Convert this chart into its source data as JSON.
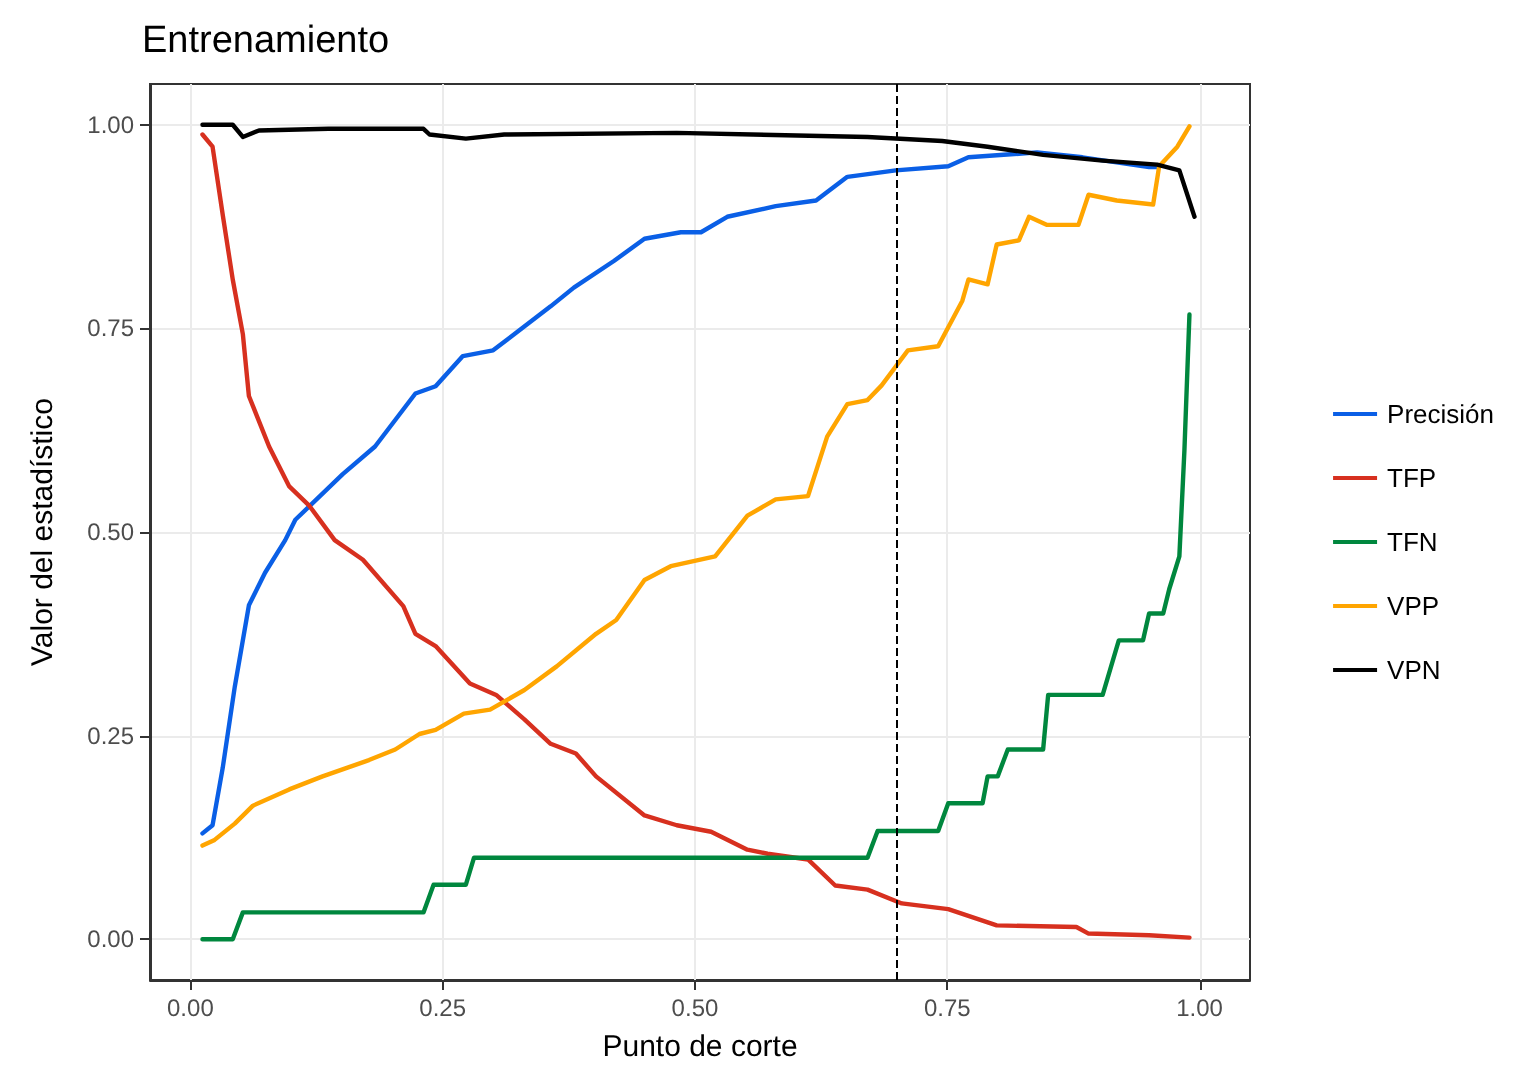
{
  "chart_data": {
    "type": "line",
    "title": "Entrenamiento",
    "xlabel": "Punto de corte",
    "ylabel": "Valor del estadístico",
    "xlim": [
      -0.04,
      1.05
    ],
    "ylim": [
      -0.05,
      1.05
    ],
    "xticks": [
      {
        "value": 0,
        "label": "0.00"
      },
      {
        "value": 0.25,
        "label": "0.25"
      },
      {
        "value": 0.5,
        "label": "0.50"
      },
      {
        "value": 0.75,
        "label": "0.75"
      },
      {
        "value": 1,
        "label": "1.00"
      }
    ],
    "yticks": [
      {
        "value": 0,
        "label": "0.00"
      },
      {
        "value": 0.25,
        "label": "0.25"
      },
      {
        "value": 0.5,
        "label": "0.50"
      },
      {
        "value": 0.75,
        "label": "0.75"
      },
      {
        "value": 1,
        "label": "1.00"
      }
    ],
    "grid": true,
    "legend": "right",
    "marker": "none",
    "line_style": "solid",
    "ref_lines": [
      {
        "axis": "x",
        "value": 0.7,
        "color": "#000000",
        "line_style": "dashed"
      }
    ],
    "series": [
      {
        "name": "Precisión",
        "color": "#0a5fe6",
        "x": [
          0.012,
          0.022,
          0.032,
          0.044,
          0.058,
          0.074,
          0.094,
          0.104,
          0.151,
          0.183,
          0.223,
          0.243,
          0.27,
          0.3,
          0.357,
          0.38,
          0.42,
          0.45,
          0.486,
          0.506,
          0.532,
          0.58,
          0.62,
          0.651,
          0.699,
          0.751,
          0.771,
          0.839,
          0.884,
          0.95,
          0.96
        ],
        "values": [
          0.13,
          0.14,
          0.21,
          0.31,
          0.41,
          0.45,
          0.49,
          0.515,
          0.571,
          0.605,
          0.67,
          0.679,
          0.716,
          0.723,
          0.777,
          0.8,
          0.833,
          0.86,
          0.868,
          0.868,
          0.887,
          0.9,
          0.907,
          0.936,
          0.944,
          0.949,
          0.96,
          0.966,
          0.96,
          0.948,
          0.948
        ]
      },
      {
        "name": "TFP",
        "color": "#d7301f",
        "x": [
          0.012,
          0.022,
          0.032,
          0.042,
          0.052,
          0.058,
          0.078,
          0.098,
          0.118,
          0.143,
          0.171,
          0.211,
          0.223,
          0.243,
          0.277,
          0.303,
          0.331,
          0.357,
          0.382,
          0.402,
          0.45,
          0.482,
          0.516,
          0.552,
          0.572,
          0.612,
          0.639,
          0.671,
          0.705,
          0.751,
          0.799,
          0.878,
          0.89,
          0.95,
          0.99
        ],
        "values": [
          0.988,
          0.973,
          0.89,
          0.81,
          0.743,
          0.667,
          0.605,
          0.556,
          0.532,
          0.49,
          0.466,
          0.409,
          0.375,
          0.36,
          0.314,
          0.3,
          0.27,
          0.24,
          0.228,
          0.2,
          0.152,
          0.14,
          0.132,
          0.11,
          0.105,
          0.098,
          0.066,
          0.061,
          0.044,
          0.037,
          0.017,
          0.015,
          0.007,
          0.005,
          0.002
        ]
      },
      {
        "name": "TFN",
        "color": "#00873e",
        "x": [
          0.012,
          0.042,
          0.052,
          0.231,
          0.241,
          0.273,
          0.281,
          0.671,
          0.681,
          0.741,
          0.751,
          0.785,
          0.79,
          0.8,
          0.81,
          0.845,
          0.85,
          0.904,
          0.92,
          0.944,
          0.95,
          0.964,
          0.97,
          0.98,
          0.985,
          0.99
        ],
        "values": [
          0,
          0,
          0.033,
          0.033,
          0.067,
          0.067,
          0.1,
          0.1,
          0.133,
          0.133,
          0.167,
          0.167,
          0.2,
          0.2,
          0.233,
          0.233,
          0.3,
          0.3,
          0.367,
          0.367,
          0.4,
          0.4,
          0.43,
          0.47,
          0.6,
          0.767
        ]
      },
      {
        "name": "VPP",
        "color": "#ffa500",
        "x": [
          0.012,
          0.024,
          0.044,
          0.062,
          0.098,
          0.131,
          0.177,
          0.203,
          0.227,
          0.243,
          0.271,
          0.297,
          0.331,
          0.363,
          0.402,
          0.422,
          0.45,
          0.476,
          0.52,
          0.552,
          0.58,
          0.612,
          0.631,
          0.651,
          0.671,
          0.685,
          0.711,
          0.741,
          0.765,
          0.771,
          0.79,
          0.799,
          0.821,
          0.831,
          0.849,
          0.88,
          0.89,
          0.918,
          0.954,
          0.96,
          0.978,
          0.99
        ],
        "values": [
          0.115,
          0.122,
          0.142,
          0.164,
          0.184,
          0.2,
          0.22,
          0.233,
          0.252,
          0.257,
          0.277,
          0.282,
          0.306,
          0.335,
          0.375,
          0.392,
          0.441,
          0.458,
          0.47,
          0.52,
          0.54,
          0.544,
          0.617,
          0.657,
          0.662,
          0.68,
          0.723,
          0.728,
          0.784,
          0.81,
          0.804,
          0.853,
          0.858,
          0.887,
          0.877,
          0.877,
          0.914,
          0.907,
          0.902,
          0.949,
          0.973,
          0.998
        ]
      },
      {
        "name": "VPN",
        "color": "#000000",
        "x": [
          0.012,
          0.042,
          0.052,
          0.068,
          0.137,
          0.231,
          0.237,
          0.273,
          0.311,
          0.482,
          0.671,
          0.745,
          0.79,
          0.845,
          0.904,
          0.958,
          0.98,
          0.995
        ],
        "values": [
          1.0,
          1.0,
          0.985,
          0.993,
          0.995,
          0.995,
          0.988,
          0.983,
          0.988,
          0.99,
          0.985,
          0.98,
          0.973,
          0.963,
          0.956,
          0.951,
          0.944,
          0.887
        ]
      }
    ]
  }
}
